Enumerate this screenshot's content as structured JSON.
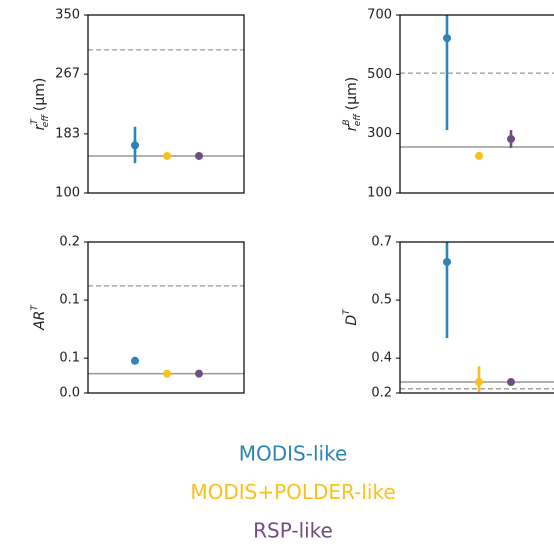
{
  "chart_data": [
    {
      "type": "errorpoint",
      "ylabel": {
        "base": "r",
        "sup": "T",
        "sub": "eff",
        "unit": "(μm)"
      },
      "ylim": [
        100,
        350
      ],
      "yticks": [
        100,
        183,
        267,
        350
      ],
      "dashed_line": 301,
      "solid_line": 152,
      "series": [
        {
          "values": [
            167
          ],
          "error_low": [
            142
          ],
          "error_high": [
            193
          ]
        },
        {
          "values": [
            152
          ],
          "error_low": [
            null
          ],
          "error_high": [
            null
          ]
        },
        {
          "values": [
            152
          ],
          "error_low": [
            null
          ],
          "error_high": [
            null
          ]
        }
      ]
    },
    {
      "type": "errorpoint",
      "ylabel": {
        "base": "r",
        "sup": "B",
        "sub": "eff",
        "unit": "(μm)"
      },
      "ylim": [
        100,
        700
      ],
      "yticks": [
        100,
        300,
        500,
        700
      ],
      "dashed_line": 504,
      "solid_line": 255,
      "series": [
        {
          "values": [
            622
          ],
          "error_low": [
            312
          ],
          "error_high": [
            700
          ]
        },
        {
          "values": [
            225
          ],
          "error_low": [
            null
          ],
          "error_high": [
            null
          ]
        },
        {
          "values": [
            282
          ],
          "error_low": [
            252
          ],
          "error_high": [
            312
          ]
        }
      ]
    },
    {
      "type": "errorpoint",
      "ylabel": {
        "base": "AR",
        "sup": "T",
        "sub": null,
        "unit": null
      },
      "ylim": [
        0.043,
        0.16
      ],
      "yticks": [
        {
          "value": 0.043,
          "label": "0.0"
        },
        {
          "value": 0.07,
          "label": "0.1"
        },
        {
          "value": 0.115,
          "label": "0.1"
        },
        {
          "value": 0.16,
          "label": "0.2"
        }
      ],
      "dashed_line": 0.126,
      "solid_line": 0.058,
      "series": [
        {
          "values": [
            0.068
          ],
          "error_low": [
            null
          ],
          "error_high": [
            null
          ]
        },
        {
          "values": [
            0.058
          ],
          "error_low": [
            null
          ],
          "error_high": [
            null
          ]
        },
        {
          "values": [
            0.058
          ],
          "error_low": [
            null
          ],
          "error_high": [
            null
          ]
        }
      ]
    },
    {
      "type": "errorpoint",
      "ylabel": {
        "base": "D",
        "sup": "T",
        "sub": null,
        "unit": null
      },
      "ylim": [
        0.247,
        0.715
      ],
      "yticks": [
        {
          "value": 0.247,
          "label": "0.2"
        },
        {
          "value": 0.355,
          "label": "0.4"
        },
        {
          "value": 0.535,
          "label": "0.5"
        },
        {
          "value": 0.715,
          "label": "0.7"
        }
      ],
      "dashed_line": 0.26,
      "solid_line": 0.281,
      "series": [
        {
          "values": [
            0.653
          ],
          "error_low": [
            0.417
          ],
          "error_high": [
            0.715
          ]
        },
        {
          "values": [
            0.281
          ],
          "error_low": [
            0.25
          ],
          "error_high": [
            0.33
          ]
        },
        {
          "values": [
            0.281
          ],
          "error_low": null,
          "error_high": null
        }
      ]
    }
  ],
  "legend": [
    {
      "name": "MODIS-like",
      "color": "#2b86b6"
    },
    {
      "name": "MODIS+POLDER-like",
      "color": "#f9c11c"
    },
    {
      "name": "RSP-like",
      "color": "#6f4f81"
    }
  ]
}
